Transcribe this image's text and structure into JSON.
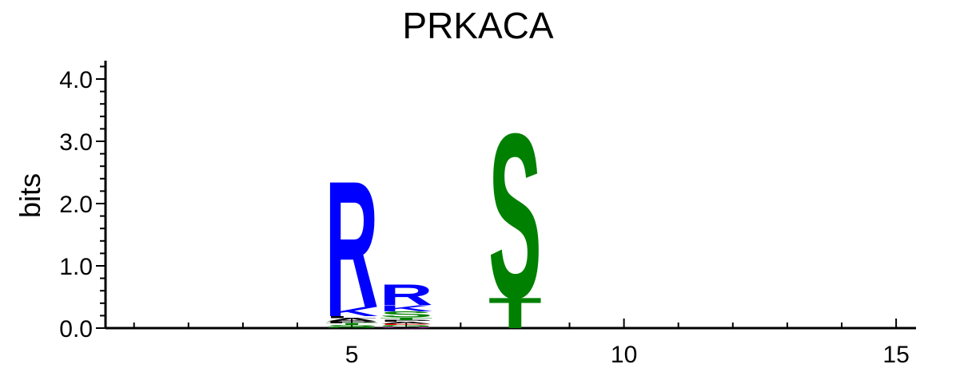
{
  "chart_data": {
    "type": "sequence-logo",
    "title": "PRKACA",
    "xlabel": "",
    "ylabel": "bits",
    "xlim": [
      0,
      15.5
    ],
    "ylim": [
      0,
      4.3
    ],
    "y_ticks": [
      0.0,
      1.0,
      2.0,
      3.0,
      4.0
    ],
    "y_tick_labels": [
      "0.0",
      "1.0",
      "2.0",
      "3.0",
      "4.0"
    ],
    "y_minor_step": 0.2,
    "x_ticks": [
      5,
      10,
      15
    ],
    "x_tick_labels": [
      "5",
      "10",
      "15"
    ],
    "colors": {
      "basic": "#0000ff",
      "polar": "#008000",
      "hydrophobic": "#000000",
      "acidic": "#ff0000",
      "amide": "#800080"
    },
    "positions": [
      {
        "position": 5,
        "letters": [
          {
            "residue": "G",
            "height": 0.02,
            "color": "#008000"
          },
          {
            "residue": "S",
            "height": 0.03,
            "color": "#008000"
          },
          {
            "residue": "T",
            "height": 0.03,
            "color": "#008000"
          },
          {
            "residue": "P",
            "height": 0.03,
            "color": "#000000"
          },
          {
            "residue": "A",
            "height": 0.05,
            "color": "#000000"
          },
          {
            "residue": "L",
            "height": 0.03,
            "color": "#000000"
          },
          {
            "residue": "K",
            "height": 0.15,
            "color": "#0000ff"
          },
          {
            "residue": "R",
            "height": 2.08,
            "color": "#0000ff"
          }
        ]
      },
      {
        "position": 6,
        "letters": [
          {
            "residue": "Q",
            "height": 0.02,
            "color": "#800080"
          },
          {
            "residue": "G",
            "height": 0.03,
            "color": "#008000"
          },
          {
            "residue": "E",
            "height": 0.02,
            "color": "#ff0000"
          },
          {
            "residue": "A",
            "height": 0.03,
            "color": "#000000"
          },
          {
            "residue": "P",
            "height": 0.03,
            "color": "#000000"
          },
          {
            "residue": "T",
            "height": 0.04,
            "color": "#008000"
          },
          {
            "residue": "S",
            "height": 0.1,
            "color": "#008000"
          },
          {
            "residue": "K",
            "height": 0.1,
            "color": "#0000ff"
          },
          {
            "residue": "R",
            "height": 0.34,
            "color": "#0000ff"
          }
        ]
      },
      {
        "position": 8,
        "letters": [
          {
            "residue": "T",
            "height": 0.5,
            "color": "#008000"
          },
          {
            "residue": "S",
            "height": 2.7,
            "color": "#008000"
          }
        ]
      }
    ]
  }
}
